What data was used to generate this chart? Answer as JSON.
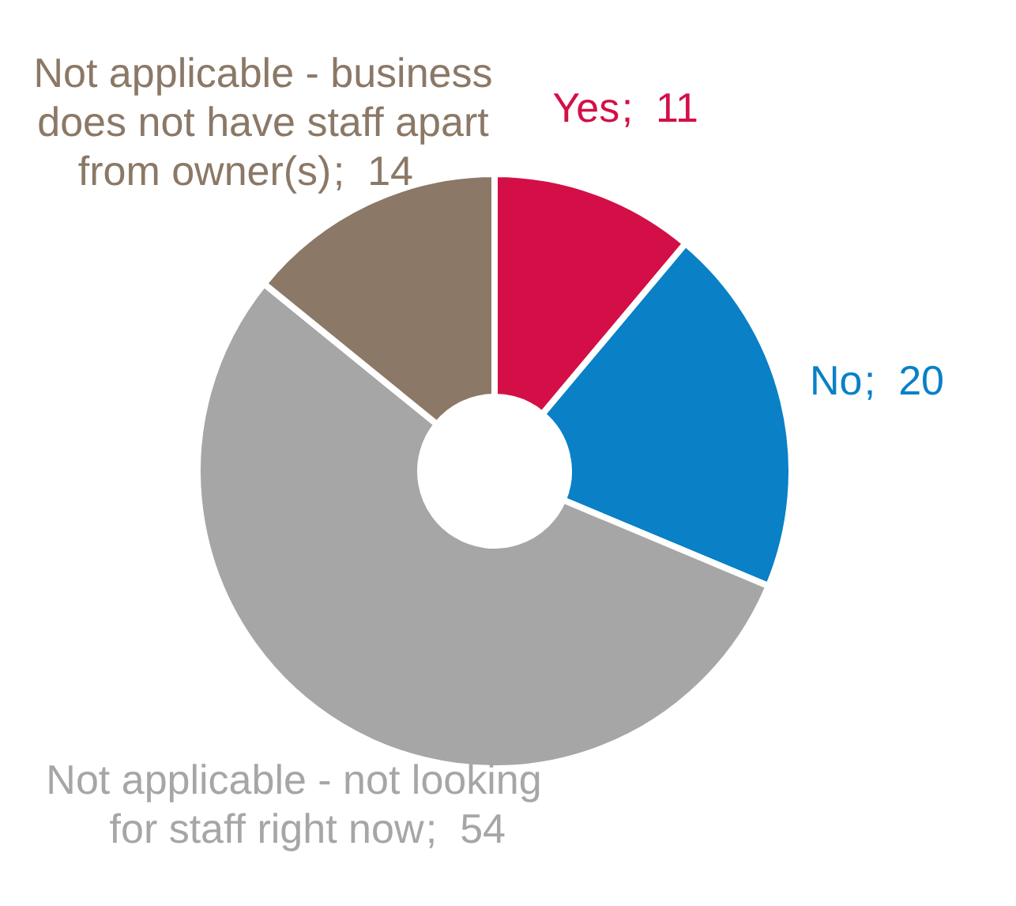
{
  "chart_data": {
    "type": "donut",
    "categories": [
      "Yes",
      "No",
      "Not applicable - not looking for staff right now",
      "Not applicable - business does not have staff apart from owner(s)"
    ],
    "values": [
      11,
      20,
      54,
      14
    ],
    "colors": [
      "#d40f47",
      "#0a80c6",
      "#a6a6a6",
      "#8b7866"
    ],
    "value_labels": [
      ";  11",
      ";  20",
      ";  54",
      ";  14"
    ]
  }
}
